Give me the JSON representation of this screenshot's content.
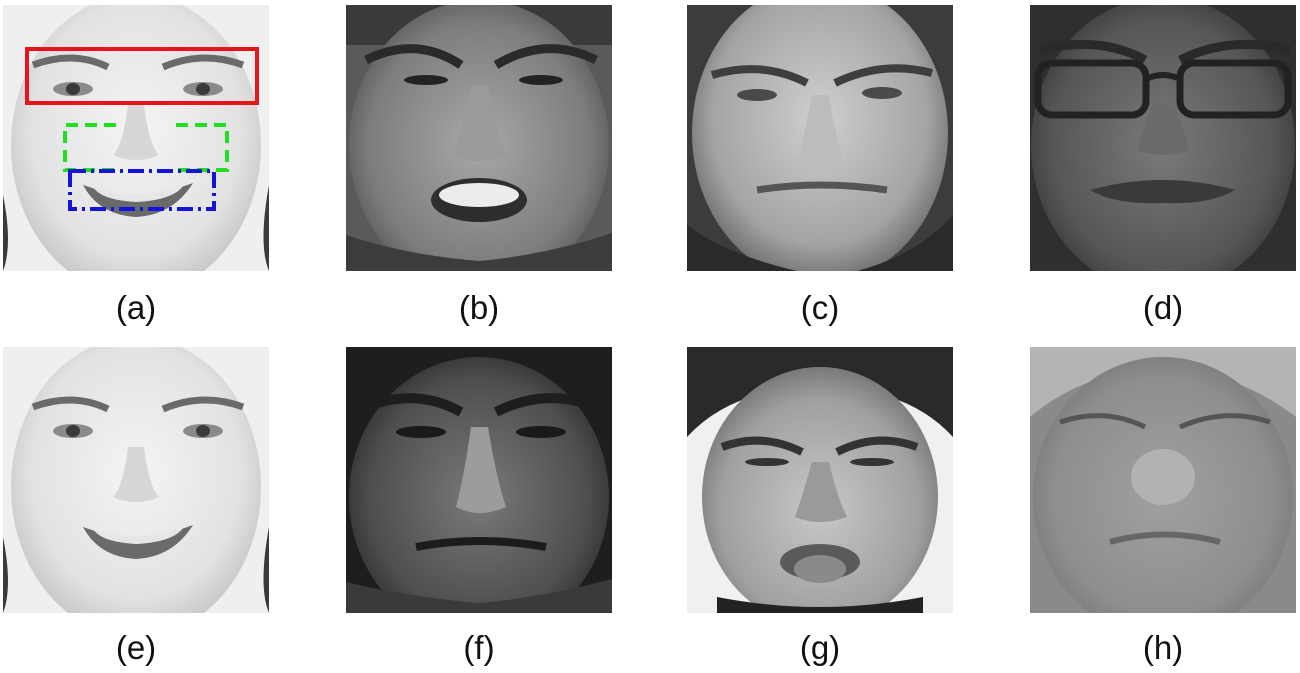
{
  "panels": [
    {
      "id": "a",
      "caption": "(a)",
      "content": "face photo with region boxes"
    },
    {
      "id": "b",
      "caption": "(b)",
      "content": "face photo"
    },
    {
      "id": "c",
      "caption": "(c)",
      "content": "face photo"
    },
    {
      "id": "d",
      "caption": "(d)",
      "content": "face photo"
    },
    {
      "id": "e",
      "caption": "(e)",
      "content": "face photo"
    },
    {
      "id": "f",
      "caption": "(f)",
      "content": "face photo"
    },
    {
      "id": "g",
      "caption": "(g)",
      "content": "face photo"
    },
    {
      "id": "h",
      "caption": "(h)",
      "content": "face photo"
    }
  ],
  "region_boxes": {
    "eyes_color": "#e8141c",
    "nose_color": "#1fe01f",
    "mouth_color": "#1414d8"
  }
}
